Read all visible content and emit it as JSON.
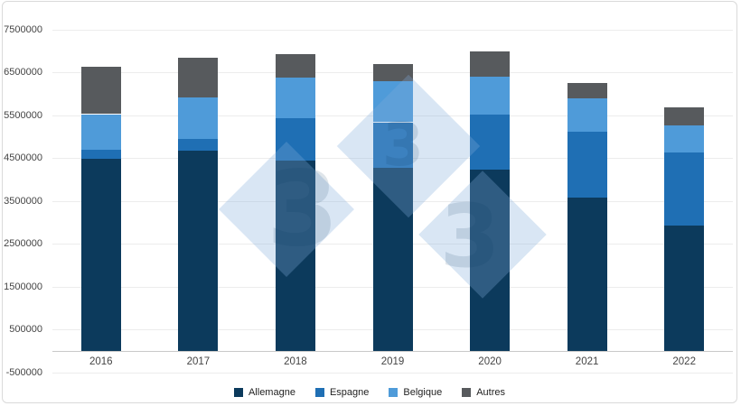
{
  "chart_data": {
    "type": "bar",
    "stacked": true,
    "title": "",
    "xlabel": "",
    "ylabel": "",
    "categories": [
      "2016",
      "2017",
      "2018",
      "2019",
      "2020",
      "2021",
      "2022"
    ],
    "series": [
      {
        "name": "Allemagne",
        "color": "#0C3A5C",
        "values": [
          4480000,
          4670000,
          4440000,
          4280000,
          4230000,
          3570000,
          2930000
        ]
      },
      {
        "name": "Espagne",
        "color": "#1F6FB4",
        "values": [
          210000,
          270000,
          990000,
          1060000,
          1280000,
          1540000,
          1700000
        ]
      },
      {
        "name": "Belgique",
        "color": "#4F9BD9",
        "values": [
          840000,
          970000,
          960000,
          950000,
          900000,
          780000,
          640000
        ]
      },
      {
        "name": "Autres",
        "color": "#575A5D",
        "values": [
          1110000,
          940000,
          550000,
          400000,
          590000,
          360000,
          420000
        ]
      }
    ],
    "totals": [
      6640000,
      6850000,
      6940000,
      6690000,
      7000000,
      6250000,
      5690000
    ],
    "ylim": [
      -500000,
      7500000
    ],
    "ytick_interval": 1000000,
    "yticks": [
      7500000,
      6500000,
      5500000,
      4500000,
      3500000,
      2500000,
      1500000,
      500000,
      -500000
    ],
    "grid": true,
    "legend_position": "bottom"
  },
  "watermark": {
    "digits": [
      "3",
      "3",
      "3"
    ],
    "diamond_color": "rgba(128,172,219,0.30)",
    "digit_color": "rgba(10,55,95,0.13)"
  },
  "colors": {
    "background": "#FFFFFF",
    "card_border": "#DADADA",
    "gridline": "#ECECEC",
    "zero_axis": "#C9C9C9",
    "axis_text": "#444444",
    "legend_text": "#222222"
  }
}
